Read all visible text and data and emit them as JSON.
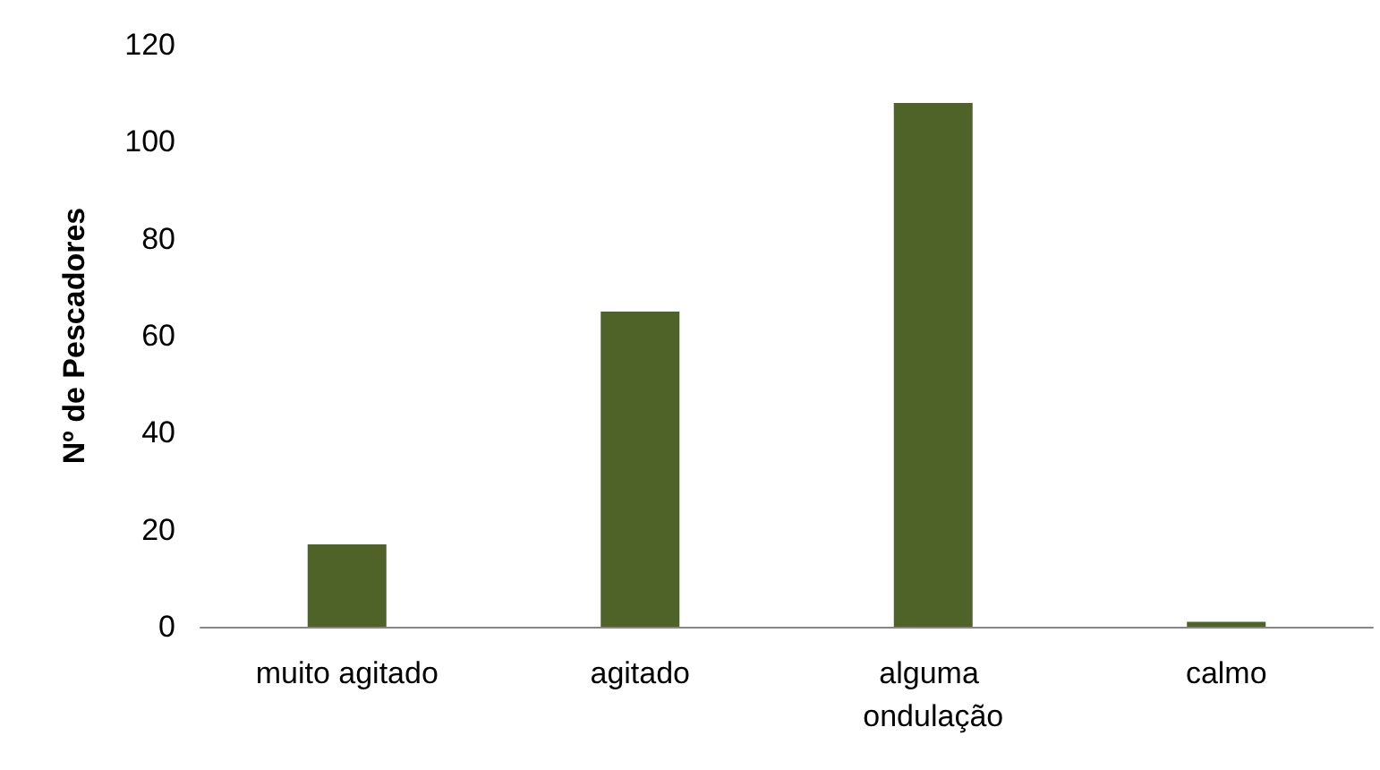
{
  "chart_data": {
    "type": "bar",
    "ylabel": "Nº de Pescadores",
    "categories": [
      "muito agitado",
      "agitado",
      "alguma ondulação",
      "calmo"
    ],
    "values": [
      17,
      65,
      108,
      1
    ],
    "color": "#4f6228",
    "ylim": [
      0,
      120
    ],
    "yticks": [
      0,
      20,
      40,
      60,
      80,
      100,
      120
    ],
    "grid": false
  }
}
